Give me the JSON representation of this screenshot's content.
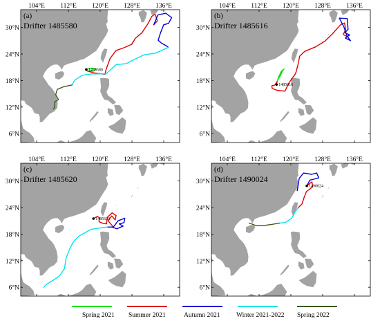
{
  "map": {
    "lon_ticks": [
      "104°E",
      "112°E",
      "120°E",
      "128°E",
      "136°E"
    ],
    "lat_ticks": [
      "30°N",
      "24°N",
      "18°N",
      "12°N",
      "6°N"
    ],
    "lon_values": [
      104,
      112,
      120,
      128,
      136
    ],
    "lat_values": [
      30,
      24,
      18,
      12,
      6
    ],
    "lon_range": [
      100,
      140
    ],
    "lat_range": [
      4,
      34
    ]
  },
  "colors": {
    "land": "#a3a3a3",
    "spring_2021": "#00e000",
    "summer_2021": "#e00000",
    "autumn_2021": "#0000d0",
    "winter_2021_2022": "#00e5ee",
    "spring_2022": "#3a5a1a"
  },
  "panels": [
    {
      "label": "(a)",
      "title": "Drifter 1485580",
      "id_label": "1485580"
    },
    {
      "label": "(b)",
      "title": "Drifter 1485616",
      "id_label": "1485616"
    },
    {
      "label": "(c)",
      "title": "Drifter 1485620",
      "id_label": "1485620"
    },
    {
      "label": "(d)",
      "title": "Drifter 1490024",
      "id_label": "1490024"
    }
  ],
  "legend": [
    {
      "label": "Spring 2021",
      "color": "#00e000"
    },
    {
      "label": "Summer 2021",
      "color": "#e00000"
    },
    {
      "label": "Autumn 2021",
      "color": "#0000d0"
    },
    {
      "label": "Winter 2021-2022",
      "color": "#00e5ee"
    },
    {
      "label": "Spring 2022",
      "color": "#3a5a1a"
    }
  ],
  "tracks": [
    {
      "spring_2021": [
        [
          116.5,
          20.5
        ],
        [
          117.5,
          20.8
        ],
        [
          119,
          20.6
        ],
        [
          118.2,
          20.1
        ],
        [
          116.6,
          20.2
        ]
      ],
      "summer_2021": [
        [
          116.6,
          20.2
        ],
        [
          118.5,
          19.7
        ],
        [
          121.2,
          19.4
        ],
        [
          121.5,
          20.5
        ],
        [
          122.5,
          23
        ],
        [
          124,
          24.8
        ],
        [
          126,
          25.4
        ],
        [
          128,
          26.2
        ],
        [
          128.8,
          27.5
        ],
        [
          130.5,
          28.8
        ],
        [
          132,
          30.8
        ],
        [
          133,
          32.5
        ],
        [
          133.8,
          33
        ],
        [
          134.4,
          31.5
        ],
        [
          133.5,
          30.6
        ]
      ],
      "autumn_2021": [
        [
          133.5,
          30.6
        ],
        [
          134.5,
          32.8
        ],
        [
          136.5,
          33.2
        ],
        [
          138,
          32.2
        ],
        [
          137.2,
          30.9
        ],
        [
          136,
          30.6
        ],
        [
          135.2,
          28.8
        ],
        [
          134.6,
          27.1
        ],
        [
          135.5,
          26.4
        ],
        [
          136.5,
          25.9
        ],
        [
          137.2,
          25.5
        ]
      ],
      "winter_2021_2022": [
        [
          137.2,
          25.5
        ],
        [
          134,
          24.2
        ],
        [
          131,
          23.8
        ],
        [
          128.5,
          22.7
        ],
        [
          126.5,
          21.8
        ],
        [
          124,
          21.6
        ],
        [
          121.5,
          19.5
        ],
        [
          118,
          19.5
        ],
        [
          115.5,
          19.2
        ],
        [
          113.6,
          18.1
        ],
        [
          112.9,
          17.0
        ]
      ],
      "spring_2022": [
        [
          112.9,
          17.0
        ],
        [
          110.8,
          16.6
        ],
        [
          109.2,
          16.0
        ],
        [
          108.8,
          14.8
        ],
        [
          109.5,
          13.7
        ],
        [
          108.6,
          13.2
        ],
        [
          108.5,
          11.9
        ],
        [
          108.2,
          11.6
        ]
      ]
    },
    {
      "spring_2021": [
        [
          116.4,
          17.1
        ],
        [
          116.7,
          18.2
        ],
        [
          117.3,
          19.0
        ],
        [
          117.9,
          20.2
        ],
        [
          118.3,
          20.6
        ],
        [
          117.6,
          20.1
        ],
        [
          117.0,
          19.0
        ],
        [
          116.5,
          17.7
        ]
      ],
      "summer_2021": [
        [
          116.5,
          17.7
        ],
        [
          116.0,
          17.0
        ],
        [
          115.2,
          16.8
        ],
        [
          115.3,
          16.2
        ],
        [
          116.5,
          15.8
        ],
        [
          118.5,
          15.6
        ],
        [
          119.6,
          17.6
        ],
        [
          121.2,
          19.6
        ],
        [
          121.8,
          21.6
        ],
        [
          122.2,
          23.5
        ],
        [
          123.5,
          24.6
        ],
        [
          126.2,
          25.6
        ],
        [
          128.6,
          26.9
        ],
        [
          130.5,
          28.6
        ],
        [
          132.5,
          30.6
        ],
        [
          133.5,
          31.0
        ],
        [
          133.8,
          29.6
        ],
        [
          133.2,
          28.4
        ],
        [
          134.2,
          27.9
        ]
      ],
      "autumn_2021": [
        [
          134.2,
          27.9
        ],
        [
          133.3,
          30.2
        ],
        [
          132.2,
          32.1
        ],
        [
          134.2,
          32.0
        ],
        [
          134.4,
          29.6
        ],
        [
          133.6,
          28.8
        ],
        [
          134.8,
          28.3
        ],
        [
          133.7,
          27.6
        ],
        [
          135.0,
          27.0
        ],
        [
          134.2,
          28.0
        ]
      ],
      "winter_2021_2022": [],
      "spring_2022": []
    },
    {
      "spring_2021": [],
      "summer_2021": [
        [
          118.3,
          21.5
        ],
        [
          119.3,
          22.0
        ],
        [
          119.8,
          21.7
        ],
        [
          119.7,
          20.8
        ],
        [
          120.5,
          20.5
        ],
        [
          121.6,
          20.3
        ],
        [
          121.8,
          21.8
        ],
        [
          123.0,
          22.8
        ],
        [
          124.0,
          22.2
        ],
        [
          123.8,
          21.2
        ],
        [
          122.9,
          22.1
        ],
        [
          122.0,
          21.0
        ],
        [
          123.3,
          19.6
        ]
      ],
      "autumn_2021": [
        [
          123.3,
          19.6
        ],
        [
          124.5,
          21.0
        ],
        [
          126.2,
          21.6
        ],
        [
          126.0,
          20.6
        ],
        [
          124.8,
          20.3
        ],
        [
          125.8,
          19.8
        ],
        [
          124.2,
          19.2
        ],
        [
          123.0,
          19.6
        ],
        [
          121.8,
          19.6
        ]
      ],
      "winter_2021_2022": [
        [
          121.8,
          19.6
        ],
        [
          120.0,
          19.4
        ],
        [
          117.8,
          19.1
        ],
        [
          116.1,
          18.3
        ],
        [
          114.6,
          17.5
        ],
        [
          113.2,
          16.2
        ],
        [
          112.3,
          14.6
        ],
        [
          111.4,
          12.5
        ],
        [
          111.0,
          10.2
        ],
        [
          109.8,
          8.6
        ],
        [
          108.2,
          7.6
        ],
        [
          106.4,
          6.6
        ],
        [
          105.8,
          6.0
        ]
      ],
      "spring_2022": []
    },
    {
      "spring_2021": [],
      "summer_2021": [
        [
          124.0,
          28.9
        ],
        [
          125.3,
          29.8
        ],
        [
          125.5,
          28.7
        ],
        [
          123.9,
          27.6
        ],
        [
          123.3,
          26.2
        ],
        [
          122.8,
          24.8
        ],
        [
          121.8,
          23.9
        ]
      ],
      "autumn_2021": [
        [
          121.6,
          27.8
        ],
        [
          122.1,
          30.6
        ],
        [
          123.2,
          31.8
        ],
        [
          125.2,
          31.5
        ],
        [
          126.5,
          31.8
        ],
        [
          127.0,
          30.7
        ],
        [
          125.8,
          30.4
        ],
        [
          124.8,
          30.2
        ],
        [
          124.0,
          28.9
        ]
      ],
      "winter_2021_2022": [
        [
          121.8,
          23.9
        ],
        [
          121.0,
          23.0
        ],
        [
          120.2,
          21.6
        ],
        [
          118.6,
          20.6
        ],
        [
          117.1,
          20.5
        ]
      ],
      "spring_2022": [
        [
          117.1,
          20.5
        ],
        [
          115.3,
          20.2
        ],
        [
          113.7,
          20.0
        ],
        [
          112.4,
          19.9
        ],
        [
          111.0,
          20.0
        ],
        [
          109.5,
          20.5
        ]
      ]
    }
  ]
}
